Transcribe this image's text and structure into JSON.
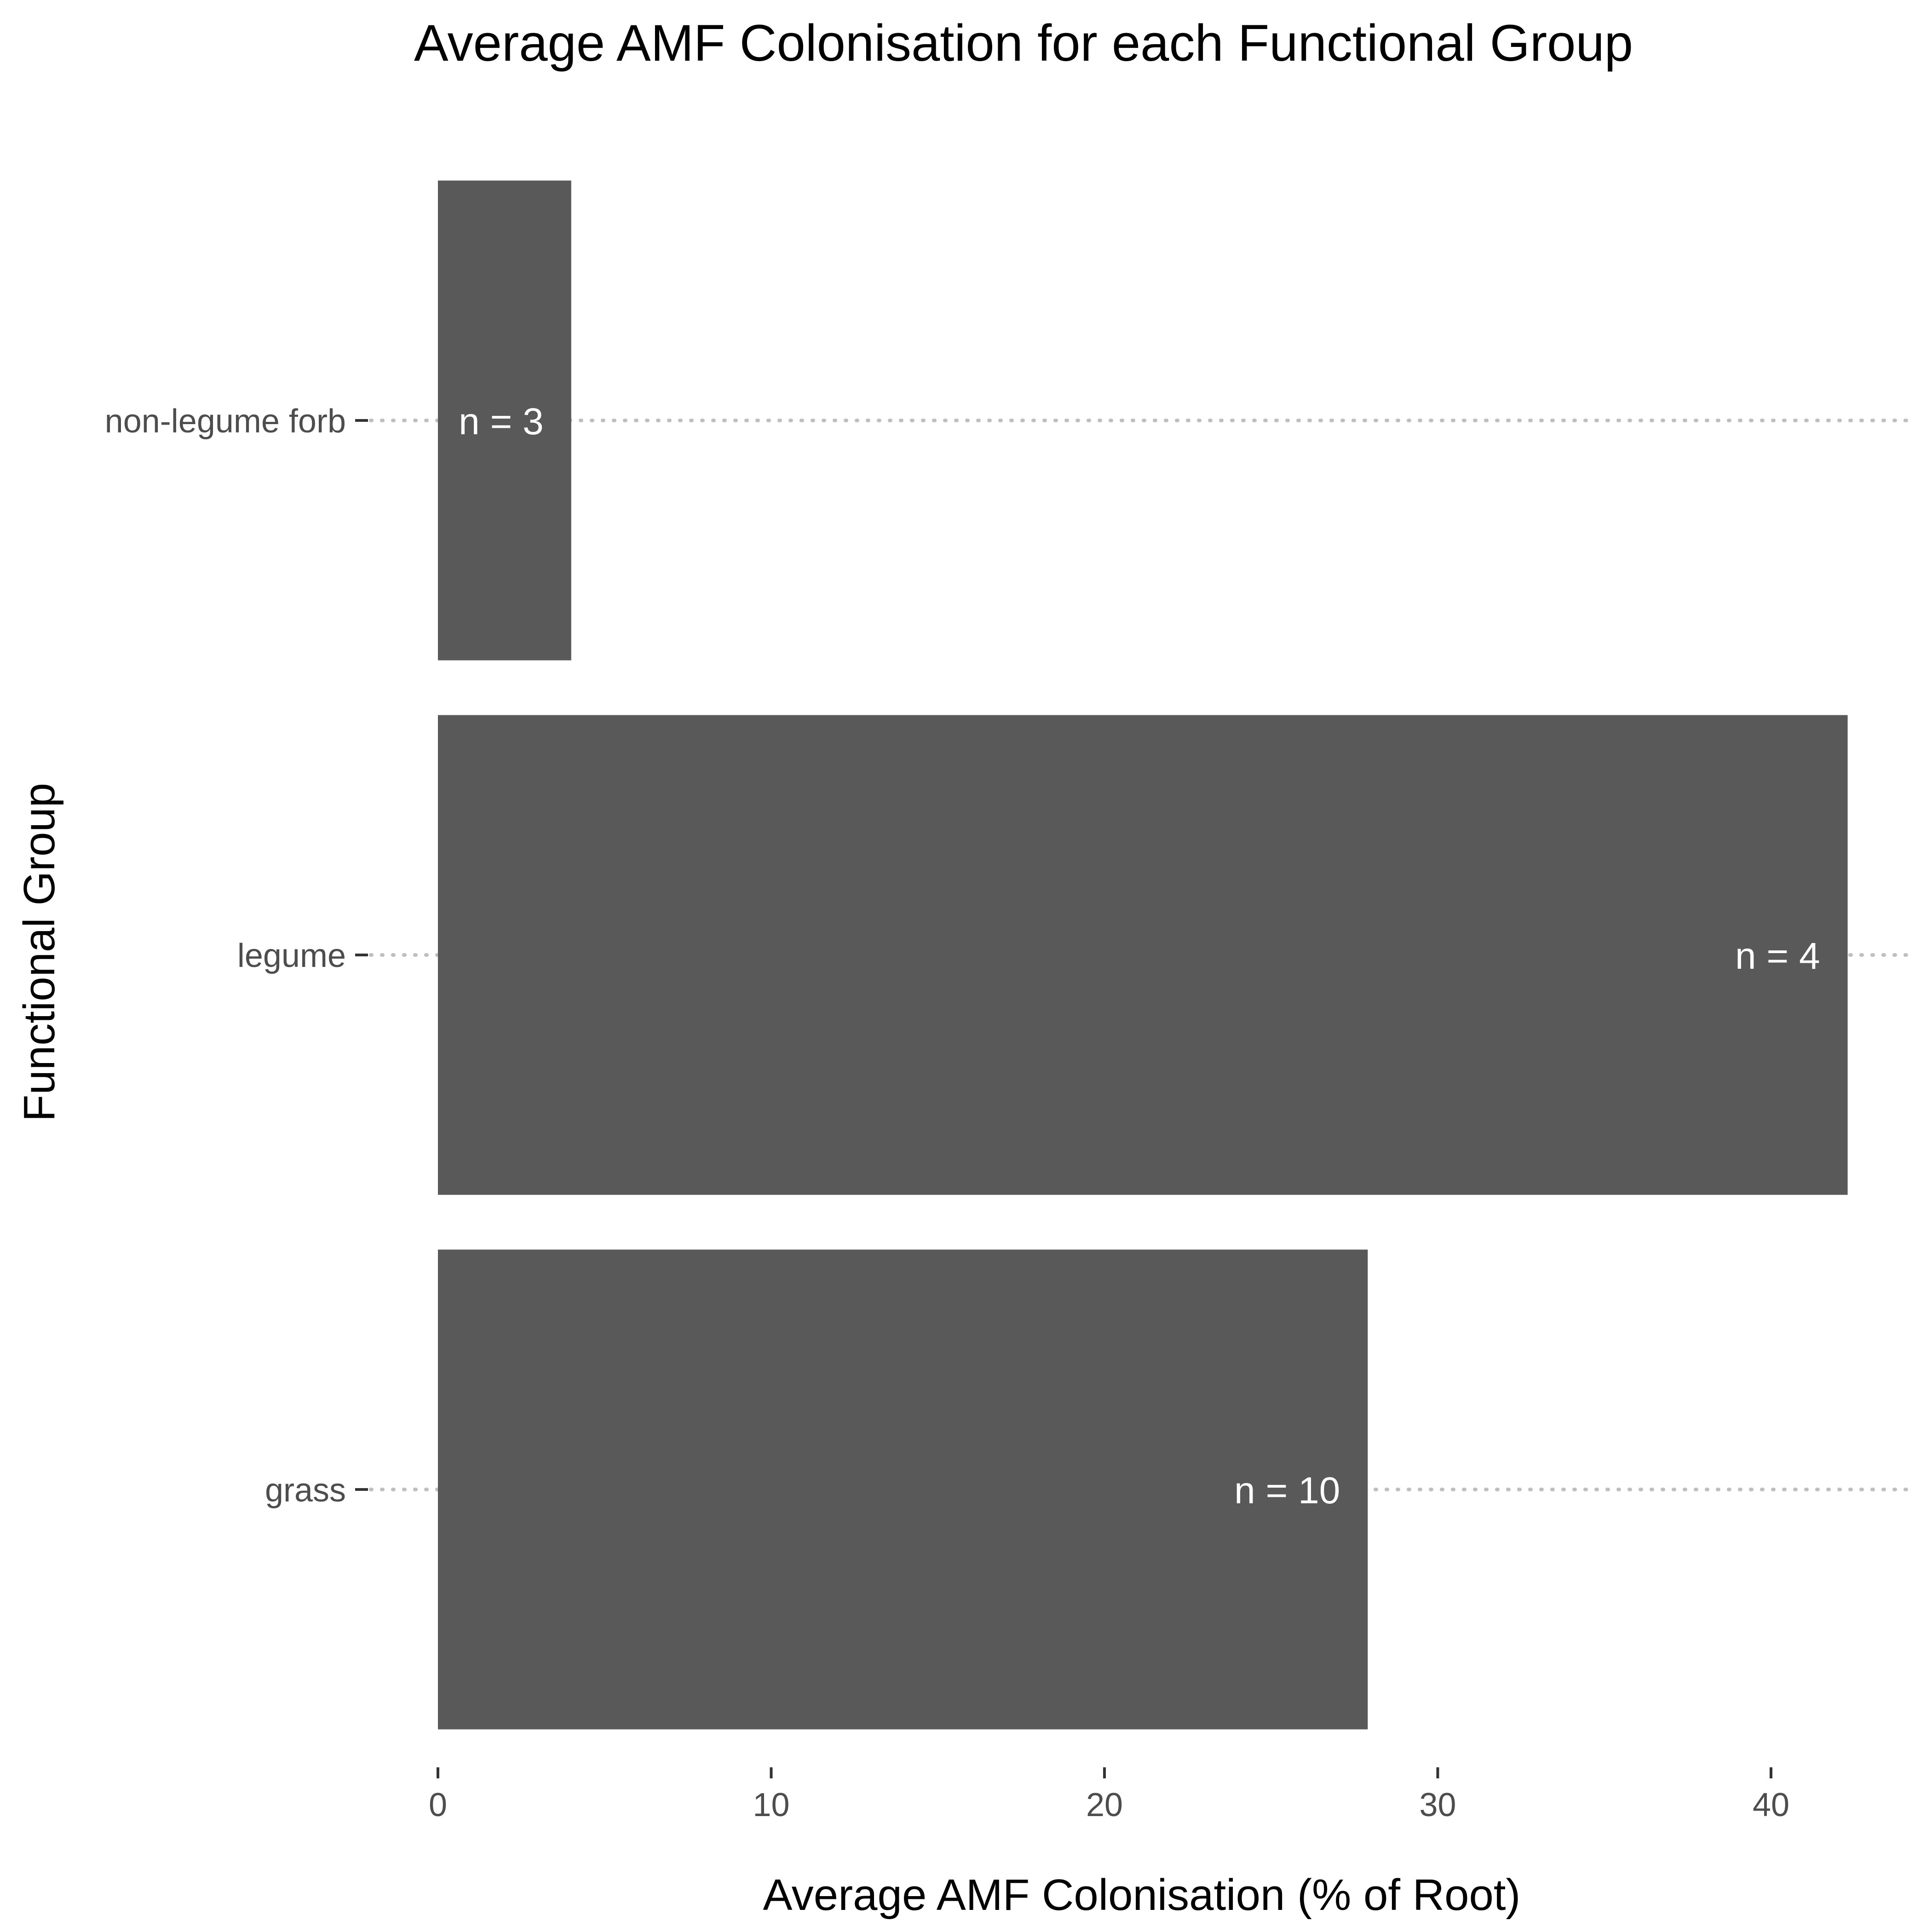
{
  "chart_data": {
    "type": "bar",
    "orientation": "horizontal",
    "title": "Average AMF Colonisation for each Functional Group",
    "xlabel": "Average AMF Colonisation (% of Root)",
    "ylabel": "Functional Group",
    "categories": [
      "non-legume forb",
      "legume",
      "grass"
    ],
    "values": [
      4.0,
      42.3,
      27.9
    ],
    "annotations": [
      "n =  3",
      "n =  4",
      "n =  10"
    ],
    "xlim": [
      0,
      44.4
    ],
    "x_ticks": [
      "0",
      "10",
      "20",
      "30",
      "40"
    ],
    "x_tick_values": [
      0,
      10,
      20,
      30,
      40
    ],
    "grid": "dotted horizontal lines at each category",
    "legend": "none",
    "colors": {
      "bar": "#595959",
      "grid": "#bfbfbf",
      "label_text": "#ffffff",
      "tick_text": "#4d4d4d"
    }
  }
}
